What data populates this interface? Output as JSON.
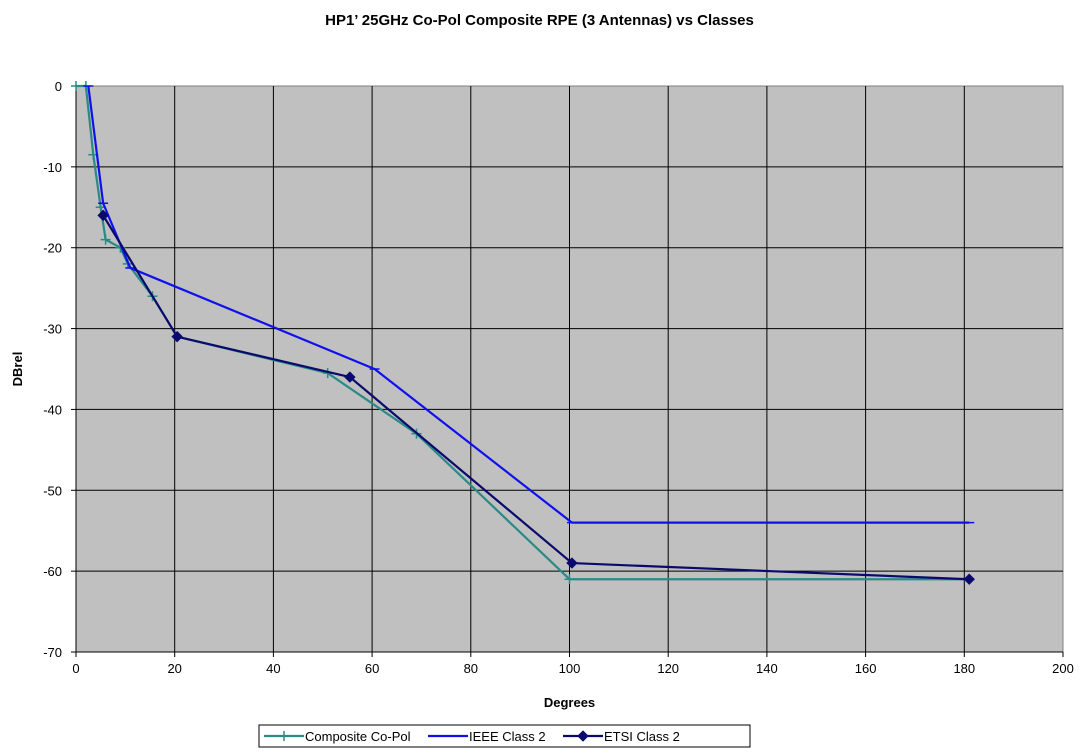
{
  "chart_data": {
    "type": "line",
    "title": "HP1’ 25GHz Co-Pol Composite RPE (3 Antennas) vs Classes",
    "xlabel": "Degrees",
    "ylabel": "DBrel",
    "xlim": [
      0,
      200
    ],
    "ylim": [
      -70,
      0
    ],
    "xticks": [
      "0",
      "20",
      "40",
      "60",
      "80",
      "100",
      "120",
      "140",
      "160",
      "180",
      "200"
    ],
    "yticks": [
      "0",
      "-10",
      "-20",
      "-30",
      "-40",
      "-50",
      "-60",
      "-70"
    ],
    "grid": true,
    "plot_background": "#c0c0c0",
    "legend_position": "bottom",
    "series": [
      {
        "name": "Composite Co-Pol",
        "color": "#2a8a86",
        "marker": "plus",
        "x": [
          0,
          2,
          3.5,
          5,
          6,
          9,
          10.5,
          15.5,
          20.5,
          51,
          69,
          100,
          181
        ],
        "y": [
          0,
          0,
          -8.5,
          -15,
          -19,
          -20,
          -22,
          -26,
          -31,
          -35.5,
          -43,
          -61,
          -61
        ]
      },
      {
        "name": "IEEE Class 2",
        "color": "#1010ee",
        "marker": "dash",
        "x": [
          2.5,
          5.5,
          11,
          60.5,
          100.5,
          181
        ],
        "y": [
          0,
          -14.5,
          -22.5,
          -35,
          -54,
          -54
        ]
      },
      {
        "name": "ETSI Class 2",
        "color": "#0a0a6e",
        "marker": "diamond",
        "x": [
          5.5,
          20.5,
          55.5,
          100.5,
          181
        ],
        "y": [
          -16,
          -31,
          -36,
          -59,
          -61
        ]
      }
    ]
  }
}
